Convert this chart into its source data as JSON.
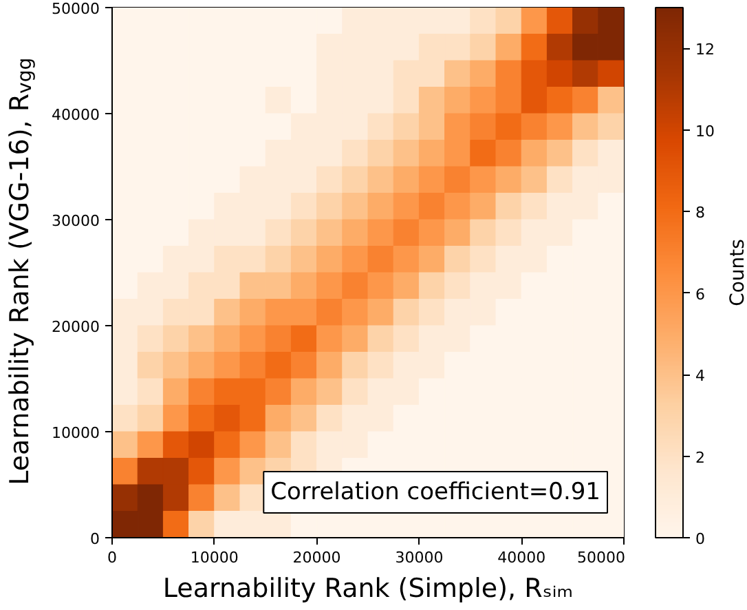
{
  "chart_data": {
    "type": "heatmap",
    "xlabel": "Learnability Rank (Simple), Rₛᵢₘ",
    "ylabel": "Learnability Rank (VGG-16), R$_{vgg}$",
    "clabel": "Counts",
    "annotations": [
      "Correlation coefficient=0.91"
    ],
    "xlim": [
      0,
      50000
    ],
    "ylim": [
      0,
      50000
    ],
    "xticks": [
      0,
      10000,
      20000,
      30000,
      40000,
      50000
    ],
    "yticks": [
      0,
      10000,
      20000,
      30000,
      40000,
      50000
    ],
    "clim": [
      0,
      13
    ],
    "cticks": [
      0,
      2,
      4,
      6,
      8,
      10,
      12
    ],
    "cells": [
      [
        0,
        0,
        0,
        0,
        0,
        0,
        0,
        0,
        0,
        1,
        1,
        1,
        1,
        1,
        2,
        3,
        6,
        9,
        12,
        13
      ],
      [
        0,
        0,
        0,
        0,
        0,
        0,
        0,
        0,
        1,
        1,
        1,
        1,
        2,
        2,
        3,
        5,
        8,
        11,
        13,
        13
      ],
      [
        0,
        0,
        0,
        0,
        0,
        0,
        0,
        0,
        1,
        1,
        1,
        2,
        2,
        4,
        5,
        7,
        9,
        10,
        11,
        10
      ],
      [
        0,
        0,
        0,
        0,
        0,
        0,
        1,
        0,
        1,
        1,
        1,
        2,
        4,
        5,
        6,
        7,
        9,
        8,
        7,
        4
      ],
      [
        0,
        0,
        0,
        0,
        0,
        0,
        0,
        1,
        1,
        1,
        2,
        3,
        4,
        6,
        7,
        8,
        7,
        6,
        4,
        3
      ],
      [
        0,
        0,
        0,
        0,
        0,
        0,
        1,
        1,
        1,
        2,
        3,
        4,
        5,
        6,
        8,
        7,
        5,
        4,
        2,
        1
      ],
      [
        0,
        0,
        0,
        0,
        0,
        1,
        1,
        1,
        2,
        3,
        4,
        5,
        6,
        7,
        6,
        5,
        4,
        2,
        1,
        1
      ],
      [
        0,
        0,
        0,
        0,
        1,
        1,
        1,
        2,
        3,
        4,
        5,
        6,
        7,
        6,
        5,
        3,
        2,
        1,
        1,
        0
      ],
      [
        0,
        0,
        0,
        1,
        1,
        1,
        2,
        3,
        4,
        5,
        6,
        7,
        6,
        5,
        3,
        2,
        1,
        1,
        0,
        0
      ],
      [
        0,
        0,
        1,
        1,
        2,
        2,
        3,
        4,
        5,
        6,
        7,
        6,
        5,
        3,
        2,
        1,
        1,
        0,
        0,
        0
      ],
      [
        0,
        1,
        1,
        2,
        2,
        4,
        4,
        5,
        6,
        7,
        6,
        5,
        3,
        2,
        1,
        1,
        0,
        0,
        0,
        0
      ],
      [
        1,
        1,
        2,
        2,
        4,
        5,
        6,
        6,
        7,
        6,
        5,
        3,
        2,
        1,
        1,
        0,
        0,
        0,
        0,
        0
      ],
      [
        1,
        2,
        3,
        4,
        5,
        6,
        7,
        8,
        6,
        5,
        3,
        2,
        1,
        1,
        0,
        0,
        0,
        0,
        0,
        0
      ],
      [
        1,
        3,
        4,
        5,
        6,
        7,
        8,
        7,
        5,
        3,
        2,
        1,
        1,
        0,
        0,
        0,
        0,
        0,
        0,
        0
      ],
      [
        1,
        2,
        5,
        7,
        8,
        8,
        7,
        5,
        4,
        2,
        1,
        1,
        0,
        0,
        0,
        0,
        0,
        0,
        0,
        0
      ],
      [
        2,
        3,
        6,
        8,
        9,
        8,
        5,
        4,
        2,
        1,
        1,
        0,
        0,
        0,
        0,
        0,
        0,
        0,
        0,
        0
      ],
      [
        4,
        6,
        9,
        10,
        8,
        6,
        4,
        2,
        1,
        1,
        0,
        0,
        0,
        0,
        0,
        0,
        0,
        0,
        0,
        0
      ],
      [
        7,
        11,
        11,
        9,
        6,
        4,
        3,
        2,
        1,
        0,
        0,
        0,
        0,
        0,
        0,
        0,
        0,
        0,
        0,
        0
      ],
      [
        12,
        13,
        11,
        7,
        4,
        2,
        null,
        null,
        null,
        null,
        null,
        null,
        null,
        null,
        null,
        null,
        null,
        null,
        null,
        0
      ],
      [
        13,
        13,
        8,
        3,
        1,
        1,
        1,
        0,
        0,
        0,
        0,
        0,
        0,
        0,
        0,
        0,
        0,
        0,
        0,
        0
      ]
    ]
  }
}
